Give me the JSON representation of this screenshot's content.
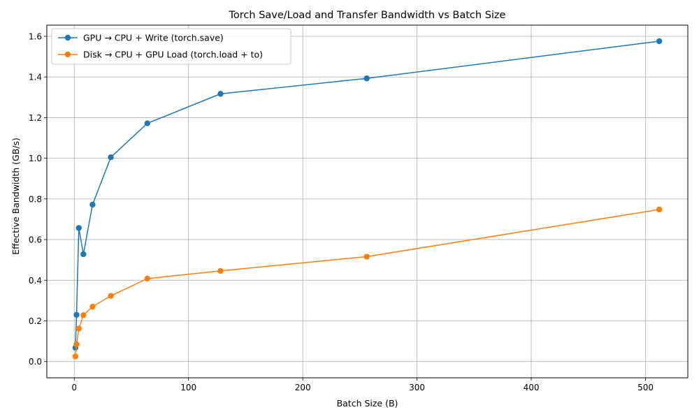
{
  "chart_data": {
    "type": "line",
    "title": "Torch Save/Load and Transfer Bandwidth vs Batch Size",
    "xlabel": "Batch Size (B)",
    "ylabel": "Effective Bandwidth (GB/s)",
    "xlim": [
      -24,
      537
    ],
    "ylim": [
      -0.08,
      1.655
    ],
    "xticks": [
      0,
      100,
      200,
      300,
      400,
      500
    ],
    "yticks": [
      0.0,
      0.2,
      0.4,
      0.6,
      0.8,
      1.0,
      1.2,
      1.4,
      1.6
    ],
    "xtick_labels": [
      "0",
      "100",
      "200",
      "300",
      "400",
      "500"
    ],
    "ytick_labels": [
      "0.0",
      "0.2",
      "0.4",
      "0.6",
      "0.8",
      "1.0",
      "1.2",
      "1.4",
      "1.6"
    ],
    "grid": true,
    "legend_position": "upper-left",
    "x": [
      1,
      2,
      4,
      8,
      16,
      32,
      64,
      128,
      256,
      512
    ],
    "series": [
      {
        "name": "GPU → CPU + Write (torch.save)",
        "color": "#1f77b4",
        "values": [
          0.068,
          0.23,
          0.657,
          0.528,
          0.772,
          1.005,
          1.172,
          1.317,
          1.393,
          1.576
        ]
      },
      {
        "name": "Disk → CPU + GPU Load (torch.load + to)",
        "color": "#ff7f0e",
        "values": [
          0.025,
          0.085,
          0.162,
          0.228,
          0.27,
          0.323,
          0.408,
          0.446,
          0.516,
          0.748
        ]
      }
    ]
  }
}
